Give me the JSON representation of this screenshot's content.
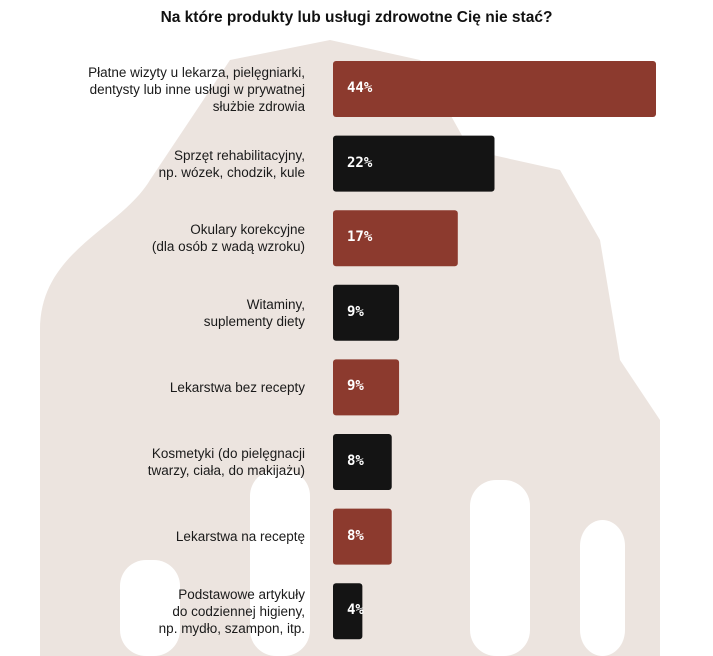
{
  "chart_data": {
    "type": "bar",
    "orientation": "horizontal",
    "title": "Na które produkty lub usługi zdrowotne Cię nie stać?",
    "categories": [
      "Płatne wizyty u lekarza, pielęgniarki,\ndentysty lub inne usługi w prywatnej\nsłużbie zdrowia",
      "Sprzęt rehabilitacyjny,\nnp. wózek, chodzik, kule",
      "Okulary korekcyjne\n(dla osób z wadą wzroku)",
      "Witaminy,\nsuplementy diety",
      "Lekarstwa bez recepty",
      "Kosmetyki (do pielęgnacji\ntwarzy, ciała, do makijażu)",
      "Lekarstwa na receptę",
      "Podstawowe artykuły\ndo codziennej higieny,\nnp. mydło, szampon, itp."
    ],
    "values": [
      44,
      22,
      17,
      9,
      9,
      8,
      8,
      4
    ],
    "value_labels": [
      "44%",
      "22%",
      "17%",
      "9%",
      "9%",
      "8%",
      "8%",
      "4%"
    ],
    "unit": "%",
    "xlim": [
      0,
      44
    ],
    "grid": false,
    "legend": "none",
    "bar_colors": [
      "#8c3a2e",
      "#141414",
      "#8c3a2e",
      "#141414",
      "#8c3a2e",
      "#141414",
      "#8c3a2e",
      "#141414"
    ]
  },
  "colors": {
    "background_shape": "#ece4df",
    "title_text": "#111111",
    "label_text": "#1a1a1a",
    "value_text": "#ffffff"
  }
}
